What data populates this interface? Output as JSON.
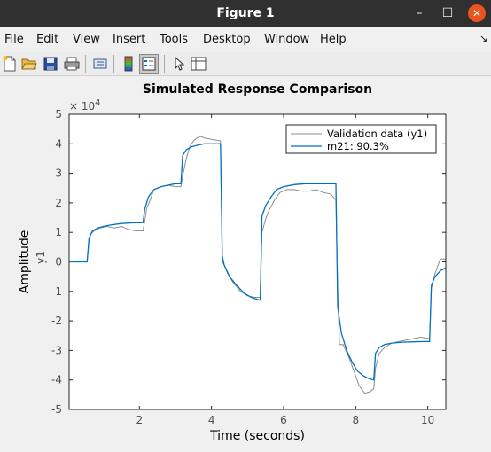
{
  "window": {
    "title": "Figure 1",
    "minimize": "–",
    "maximize": "☐",
    "close": "✕"
  },
  "menu": [
    "File",
    "Edit",
    "View",
    "Insert",
    "Tools",
    "Desktop",
    "Window",
    "Help"
  ],
  "menu_arrow": "↘",
  "toolbar": {
    "icons": [
      "new-figure-icon",
      "open-file-icon",
      "save-icon",
      "print-icon",
      "link-icon",
      "colorbar-icon",
      "legend-icon",
      "pointer-icon",
      "property-inspector-icon"
    ]
  },
  "colors": {
    "validation": "#8c8c8c",
    "model": "#0072bd",
    "axes_bg": "#ffffff",
    "fig_bg": "#f0f0f0"
  },
  "chart_data": {
    "type": "line",
    "title": "Simulated Response Comparison",
    "xlabel": "Time (seconds)",
    "ylabel": "Amplitude",
    "ylabel_channel": "y1",
    "y_exponent_label": "× 10^4",
    "xlim": [
      0.05,
      10.5
    ],
    "ylim": [
      -5,
      5
    ],
    "xticks": [
      2,
      4,
      6,
      8,
      10
    ],
    "yticks": [
      -5,
      -4,
      -3,
      -2,
      -1,
      0,
      1,
      2,
      3,
      4,
      5
    ],
    "grid": false,
    "legend": {
      "location": "top-right",
      "entries": [
        "Validation data (y1)",
        "m21: 90.3%"
      ]
    },
    "series": [
      {
        "name": "Validation data (y1)",
        "x": [
          0.05,
          0.55,
          0.6,
          0.65,
          0.75,
          0.9,
          1.1,
          1.3,
          1.5,
          1.7,
          1.9,
          2.1,
          2.15,
          2.2,
          2.3,
          2.4,
          2.6,
          2.8,
          3.0,
          3.15,
          3.2,
          3.3,
          3.4,
          3.5,
          3.6,
          3.7,
          3.8,
          4.0,
          4.25,
          4.3,
          4.35,
          4.45,
          4.6,
          4.8,
          5.0,
          5.2,
          5.35,
          5.4,
          5.5,
          5.6,
          5.75,
          5.9,
          6.1,
          6.3,
          6.5,
          6.7,
          6.9,
          7.1,
          7.3,
          7.45,
          7.5,
          7.55,
          7.65,
          7.8,
          7.95,
          8.1,
          8.25,
          8.4,
          8.5,
          8.55,
          8.65,
          8.8,
          9.0,
          9.2,
          9.4,
          9.6,
          9.8,
          10.05,
          10.1,
          10.2,
          10.35,
          10.5
        ],
        "values": [
          0,
          0,
          0.7,
          0.95,
          1.05,
          1.15,
          1.2,
          1.15,
          1.2,
          1.1,
          1.05,
          1.05,
          1.4,
          1.8,
          2.1,
          2.45,
          2.55,
          2.6,
          2.55,
          2.55,
          2.9,
          3.5,
          3.9,
          4.1,
          4.2,
          4.25,
          4.2,
          4.15,
          4.1,
          0,
          -0.1,
          -0.4,
          -0.7,
          -1.0,
          -1.15,
          -1.2,
          -1.2,
          1.0,
          1.45,
          1.75,
          2.1,
          2.35,
          2.45,
          2.45,
          2.4,
          2.4,
          2.45,
          2.35,
          2.3,
          2.1,
          -0.8,
          -2.8,
          -2.8,
          -3.2,
          -3.7,
          -4.2,
          -4.45,
          -4.4,
          -4.3,
          -3.6,
          -3.1,
          -2.9,
          -2.75,
          -2.7,
          -2.65,
          -2.6,
          -2.55,
          -2.6,
          -0.9,
          -0.4,
          0.1,
          0.1
        ]
      },
      {
        "name": "m21: 90.3%",
        "x": [
          0.05,
          0.55,
          0.6,
          0.7,
          0.85,
          1.0,
          1.2,
          1.5,
          1.8,
          2.1,
          2.15,
          2.25,
          2.4,
          2.6,
          2.8,
          3.0,
          3.15,
          3.2,
          3.3,
          3.45,
          3.6,
          3.8,
          4.0,
          4.25,
          4.3,
          4.35,
          4.5,
          4.7,
          4.9,
          5.1,
          5.35,
          5.4,
          5.5,
          5.65,
          5.8,
          6.0,
          6.3,
          6.6,
          6.9,
          7.2,
          7.45,
          7.5,
          7.6,
          7.75,
          7.9,
          8.05,
          8.2,
          8.35,
          8.5,
          8.55,
          8.65,
          8.8,
          9.0,
          9.3,
          9.6,
          9.9,
          10.05,
          10.1,
          10.2,
          10.35,
          10.5
        ],
        "values": [
          0,
          0,
          0.8,
          1.05,
          1.15,
          1.2,
          1.25,
          1.3,
          1.32,
          1.33,
          1.8,
          2.2,
          2.45,
          2.55,
          2.6,
          2.65,
          2.65,
          3.6,
          3.8,
          3.9,
          3.95,
          4.0,
          4.0,
          4.0,
          0.2,
          -0.1,
          -0.5,
          -0.8,
          -1.05,
          -1.2,
          -1.3,
          1.55,
          1.9,
          2.2,
          2.45,
          2.55,
          2.62,
          2.65,
          2.65,
          2.65,
          2.65,
          -1.5,
          -2.4,
          -3.0,
          -3.4,
          -3.7,
          -3.85,
          -3.95,
          -4.0,
          -3.1,
          -2.9,
          -2.8,
          -2.75,
          -2.72,
          -2.71,
          -2.7,
          -2.7,
          -0.8,
          -0.5,
          -0.3,
          -0.2
        ]
      }
    ]
  }
}
